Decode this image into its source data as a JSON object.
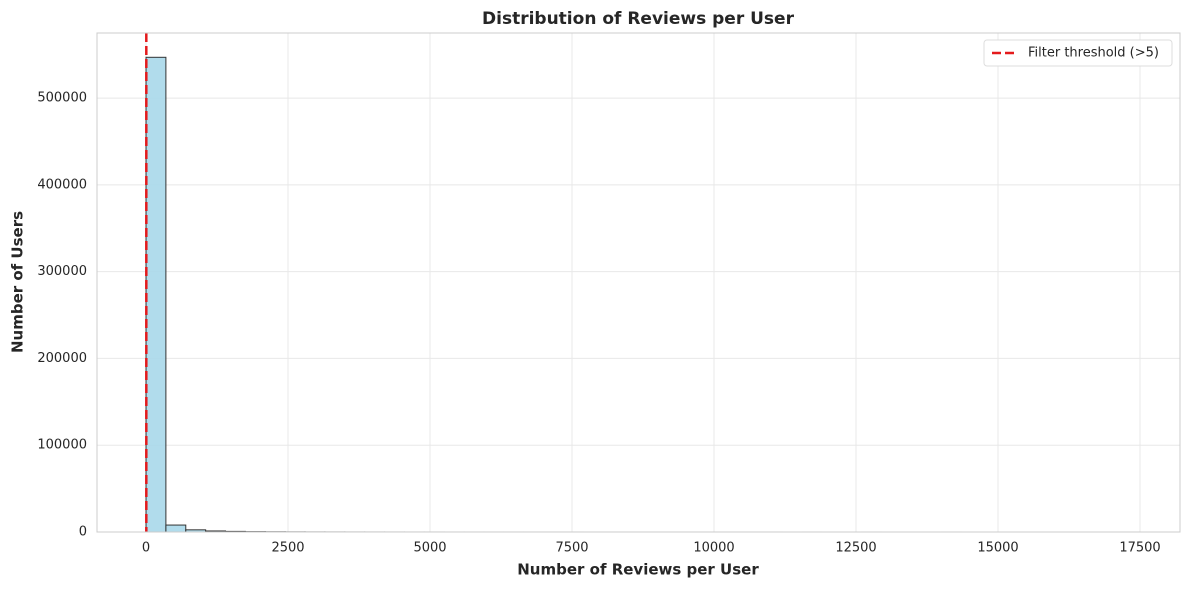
{
  "chart_data": {
    "type": "histogram",
    "title": "Distribution of Reviews per User",
    "xlabel": "Number of Reviews per User",
    "ylabel": "Number of Users",
    "bins": [
      0,
      350,
      700,
      1050,
      1400,
      1750,
      2100,
      2450,
      2800,
      3150,
      3500,
      3850,
      4200,
      4550,
      4900,
      5250,
      5600,
      5950,
      6300,
      6650,
      7000,
      7350,
      7700,
      8050,
      8400,
      8750,
      9100,
      9450,
      9800,
      10150,
      10500,
      10850,
      11200,
      11550,
      11900,
      12250,
      12600,
      12950,
      13300,
      13650,
      14000,
      14350,
      14700,
      15050,
      15400,
      15750,
      16100,
      16450,
      16800,
      17150,
      17500
    ],
    "values": [
      547000,
      8000,
      2500,
      1200,
      700,
      400,
      250,
      150,
      100,
      70,
      50,
      40,
      30,
      20,
      15,
      10,
      8,
      6,
      5,
      4,
      3,
      3,
      2,
      2,
      2,
      1,
      1,
      1,
      1,
      1,
      1,
      1,
      0,
      1,
      0,
      0,
      1,
      0,
      0,
      0,
      1,
      0,
      0,
      0,
      0,
      0,
      0,
      0,
      0,
      1
    ],
    "color": "#a8d8ea",
    "edgecolor": "#333333",
    "threshold": {
      "value": 5,
      "label": "Filter threshold (>5)",
      "color": "#e41a1c"
    },
    "xlim": [
      -863,
      18204
    ],
    "ylim": [
      0,
      575000
    ],
    "xticks": [
      0,
      2500,
      5000,
      7500,
      10000,
      12500,
      15000,
      17500
    ],
    "yticks": [
      0,
      100000,
      200000,
      300000,
      400000,
      500000
    ],
    "grid": true,
    "legend": "upper right"
  }
}
